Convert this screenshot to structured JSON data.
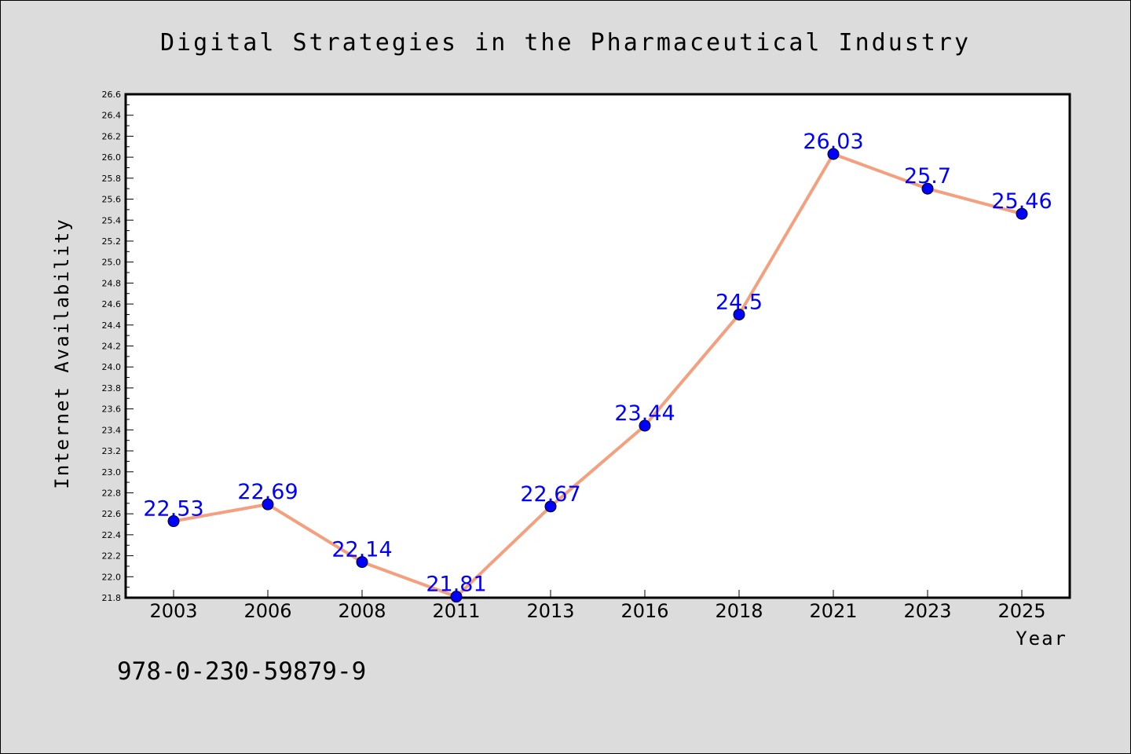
{
  "chart_data": {
    "type": "line",
    "title": "Digital Strategies in the Pharmaceutical Industry",
    "xlabel": "Year",
    "ylabel": "Internet Availability",
    "categories": [
      "2003",
      "2006",
      "2008",
      "2011",
      "2013",
      "2016",
      "2018",
      "2021",
      "2023",
      "2025"
    ],
    "series": [
      {
        "values": [
          22.53,
          22.69,
          22.14,
          21.81,
          22.67,
          23.44,
          24.5,
          26.03,
          25.7,
          25.46
        ]
      }
    ],
    "data_labels": [
      "22.53",
      "22.69",
      "22.14",
      "21.81",
      "22.67",
      "23.44",
      "24.5",
      "26.03",
      "25.7",
      "25.46"
    ],
    "ylim": [
      21.8,
      26.6
    ],
    "yticks": [
      "21.8",
      "22.0",
      "22.2",
      "22.4",
      "22.6",
      "22.8",
      "23.0",
      "23.2",
      "23.4",
      "23.6",
      "23.8",
      "24.0",
      "24.2",
      "24.4",
      "24.6",
      "24.8",
      "25.0",
      "25.2",
      "25.4",
      "25.6",
      "25.8",
      "26.0",
      "26.2",
      "26.4",
      "26.6"
    ],
    "grid": false,
    "legend": "none",
    "colors": {
      "line": "#f4a07e",
      "marker": "#0000ff",
      "data_label": "#0000ff",
      "background": "#dcdcdc",
      "plot_background": "#ffffff"
    }
  },
  "footer": {
    "text": "978-0-230-59879-9"
  }
}
